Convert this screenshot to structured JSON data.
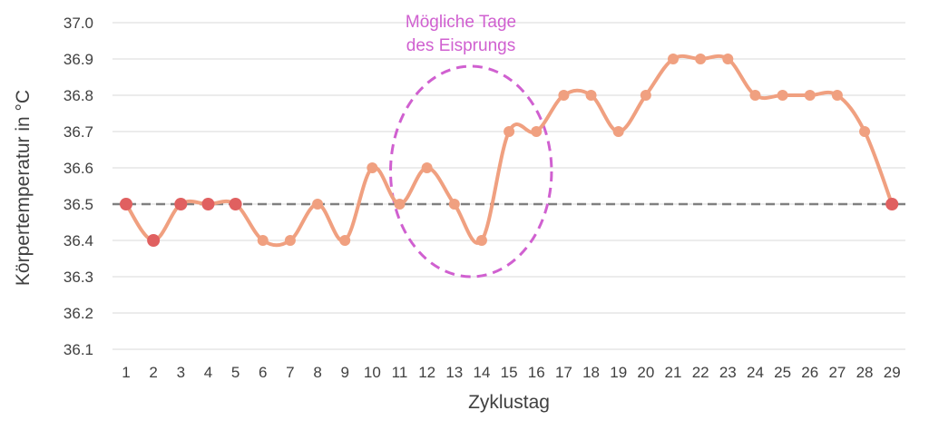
{
  "chart_data": {
    "type": "line",
    "title": "",
    "xlabel": "Zyklustag",
    "ylabel": "Körpertemperatur in °C",
    "ylim": [
      36.1,
      37.0
    ],
    "y_ticks": [
      "36.1",
      "36.2",
      "36.3",
      "36.4",
      "36.5",
      "36.6",
      "36.7",
      "36.8",
      "36.9",
      "37.0"
    ],
    "grid": true,
    "x": [
      1,
      2,
      3,
      4,
      5,
      6,
      7,
      8,
      9,
      10,
      11,
      12,
      13,
      14,
      15,
      16,
      17,
      18,
      19,
      20,
      21,
      22,
      23,
      24,
      25,
      26,
      27,
      28,
      29
    ],
    "x_labels": [
      "1",
      "2",
      "3",
      "4",
      "5",
      "6",
      "7",
      "8",
      "9",
      "10",
      "11",
      "12",
      "13",
      "14",
      "15",
      "16",
      "17",
      "18",
      "19",
      "20",
      "21",
      "22",
      "23",
      "24",
      "25",
      "26",
      "27",
      "28",
      "29"
    ],
    "series": [
      {
        "values": [
          36.5,
          36.4,
          36.5,
          36.5,
          36.5,
          36.4,
          36.4,
          36.5,
          36.4,
          36.6,
          36.5,
          36.6,
          36.5,
          36.4,
          36.7,
          36.7,
          36.8,
          36.8,
          36.7,
          36.8,
          36.9,
          36.9,
          36.9,
          36.8,
          36.8,
          36.8,
          36.8,
          36.7,
          36.5
        ],
        "highlighted_days": [
          1,
          2,
          3,
          4,
          5,
          29
        ],
        "color": "#f0a080",
        "highlight_color": "#e06060"
      }
    ],
    "reference_line": {
      "value": 36.5,
      "style": "dashed",
      "color": "#808080"
    },
    "annotation": {
      "lines": [
        "Mögliche Tage",
        "des Eisprungs"
      ],
      "color": "#d060d0",
      "circled_days": [
        11,
        14
      ],
      "circled_range": [
        36.3,
        36.88
      ]
    }
  }
}
